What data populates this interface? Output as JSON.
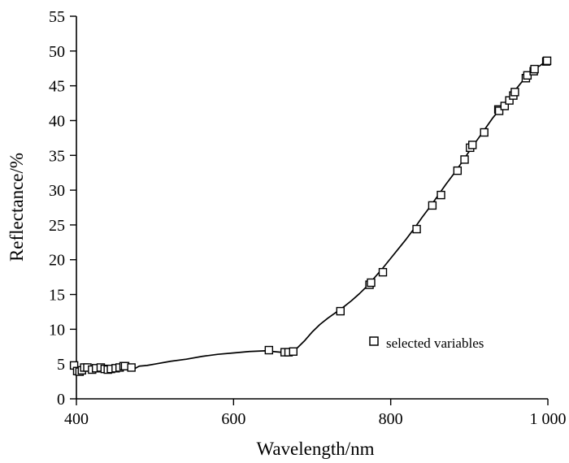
{
  "chart_data": {
    "type": "line",
    "xlabel": "Wavelength/nm",
    "ylabel": "Reflectance/%",
    "xlim": [
      400,
      1000
    ],
    "ylim": [
      0,
      55
    ],
    "x_ticks": [
      400,
      600,
      800,
      1000
    ],
    "x_tick_labels": [
      "400",
      "600",
      "800",
      "1 000"
    ],
    "y_ticks": [
      0,
      5,
      10,
      15,
      20,
      25,
      30,
      35,
      40,
      45,
      50,
      55
    ],
    "y_tick_labels": [
      "0",
      "5",
      "10",
      "15",
      "20",
      "25",
      "30",
      "35",
      "40",
      "45",
      "50",
      "55"
    ],
    "grid": false,
    "colors": {
      "line": "#000000",
      "marker_stroke": "#000000",
      "marker_fill": "#ffffff"
    },
    "series": [
      {
        "type": "line",
        "x": [
          397,
          400,
          403,
          406,
          410,
          413,
          416,
          420,
          425,
          430,
          435,
          440,
          445,
          450,
          455,
          460,
          465,
          470,
          475,
          480,
          490,
          500,
          520,
          540,
          560,
          580,
          600,
          620,
          640,
          650,
          660,
          670,
          680,
          690,
          700,
          710,
          720,
          730,
          740,
          750,
          760,
          770,
          780,
          790,
          800,
          810,
          820,
          830,
          840,
          850,
          860,
          870,
          880,
          890,
          900,
          910,
          920,
          930,
          940,
          950,
          960,
          970,
          980,
          990,
          1000
        ],
        "y": [
          4.7,
          4.4,
          4.0,
          3.9,
          4.2,
          4.4,
          4.5,
          4.3,
          4.6,
          4.4,
          4.2,
          4.3,
          4.4,
          4.6,
          4.3,
          4.6,
          4.4,
          4.5,
          4.4,
          4.7,
          4.8,
          5.0,
          5.4,
          5.7,
          6.1,
          6.4,
          6.6,
          6.8,
          6.9,
          6.8,
          6.7,
          6.8,
          7.2,
          8.3,
          9.6,
          10.7,
          11.6,
          12.4,
          13.2,
          14.1,
          15.1,
          16.2,
          17.5,
          18.8,
          20.2,
          21.6,
          23.0,
          24.5,
          26.1,
          27.6,
          29.2,
          30.8,
          32.3,
          33.9,
          35.6,
          37.2,
          38.8,
          40.4,
          41.8,
          43.2,
          44.6,
          46.0,
          47.2,
          47.9,
          48.7
        ]
      },
      {
        "type": "scatter",
        "name": "selected variables",
        "marker": "open-square",
        "x": [
          397,
          401,
          404,
          407,
          410,
          414,
          420,
          425,
          431,
          436,
          440,
          444,
          450,
          455,
          460,
          462,
          470,
          645,
          665,
          670,
          676,
          736,
          773,
          775,
          790,
          833,
          853,
          864,
          885,
          894,
          901,
          904,
          919,
          937,
          938,
          945,
          951,
          956,
          958,
          972,
          974,
          982,
          983,
          998,
          999
        ],
        "y": [
          4.8,
          4.0,
          3.9,
          4.1,
          4.5,
          4.5,
          4.2,
          4.4,
          4.5,
          4.3,
          4.2,
          4.3,
          4.4,
          4.5,
          4.7,
          4.7,
          4.5,
          7.0,
          6.7,
          6.7,
          6.8,
          12.6,
          16.4,
          16.7,
          18.2,
          24.4,
          27.8,
          29.3,
          32.8,
          34.4,
          36.1,
          36.5,
          38.3,
          41.6,
          41.4,
          42.1,
          42.9,
          43.6,
          44.1,
          46.1,
          46.5,
          47.1,
          47.4,
          48.5,
          48.6
        ]
      }
    ],
    "legend": {
      "position": "right",
      "entries": [
        "selected variables"
      ]
    }
  }
}
